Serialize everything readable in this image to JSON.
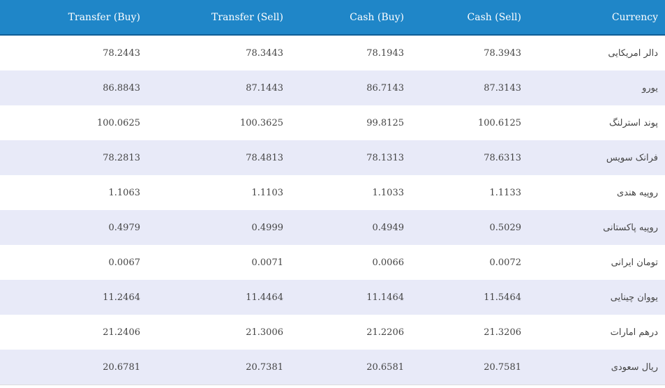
{
  "table": {
    "headers": [
      "Transfer (Buy)",
      "Transfer (Sell)",
      "Cash (Buy)",
      "Cash (Sell)",
      "Currency"
    ],
    "rows": [
      {
        "transfer_buy": "78.2443",
        "transfer_sell": "78.3443",
        "cash_buy": "78.1943",
        "cash_sell": "78.3943",
        "currency": "دالر امریکایی"
      },
      {
        "transfer_buy": "86.8843",
        "transfer_sell": "87.1443",
        "cash_buy": "86.7143",
        "cash_sell": "87.3143",
        "currency": "یورو"
      },
      {
        "transfer_buy": "100.0625",
        "transfer_sell": "100.3625",
        "cash_buy": "99.8125",
        "cash_sell": "100.6125",
        "currency": "پوند استرلنگ"
      },
      {
        "transfer_buy": "78.2813",
        "transfer_sell": "78.4813",
        "cash_buy": "78.1313",
        "cash_sell": "78.6313",
        "currency": "فرانک سویس"
      },
      {
        "transfer_buy": "1.1063",
        "transfer_sell": "1.1103",
        "cash_buy": "1.1033",
        "cash_sell": "1.1133",
        "currency": "روپیه هندی"
      },
      {
        "transfer_buy": "0.4979",
        "transfer_sell": "0.4999",
        "cash_buy": "0.4949",
        "cash_sell": "0.5029",
        "currency": "روپیه پاکستانی"
      },
      {
        "transfer_buy": "0.0067",
        "transfer_sell": "0.0071",
        "cash_buy": "0.0066",
        "cash_sell": "0.0072",
        "currency": "تومان ایرانی"
      },
      {
        "transfer_buy": "11.2464",
        "transfer_sell": "11.4464",
        "cash_buy": "11.1464",
        "cash_sell": "11.5464",
        "currency": "یووان چینایی"
      },
      {
        "transfer_buy": "21.2406",
        "transfer_sell": "21.3006",
        "cash_buy": "21.2206",
        "cash_sell": "21.3206",
        "currency": "درهم امارات"
      },
      {
        "transfer_buy": "20.6781",
        "transfer_sell": "20.7381",
        "cash_buy": "20.6581",
        "cash_sell": "20.7581",
        "currency": "ریال سعودی"
      }
    ]
  },
  "colors": {
    "header_bg": "#1f86c8",
    "stripe_bg": "#e8eaf8"
  }
}
